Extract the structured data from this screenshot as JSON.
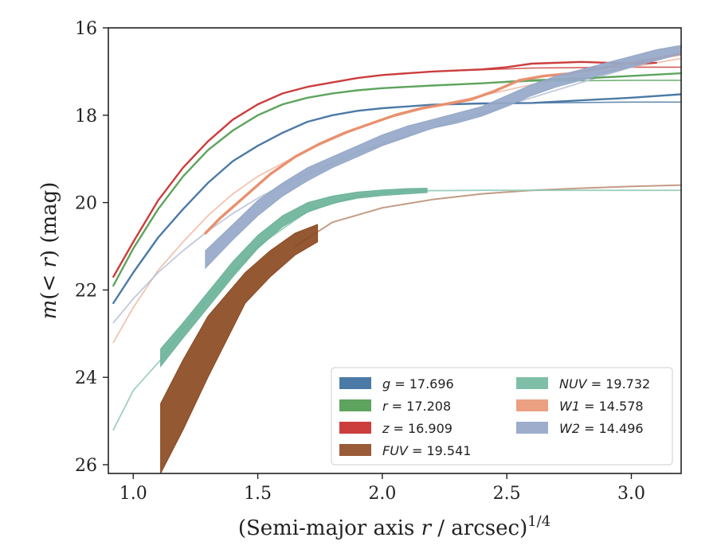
{
  "chart_data": {
    "type": "line",
    "xlabel": "(Semi-major axis r / arcsec)^1/4",
    "ylabel": "m(< r) (mag)",
    "xlim": [
      0.9,
      3.2
    ],
    "ylim": [
      26.2,
      16.0
    ],
    "y_inverted": true,
    "xticks": [
      "1.0",
      "1.5",
      "2.0",
      "2.5",
      "3.0"
    ],
    "yticks": [
      "16",
      "18",
      "20",
      "22",
      "24",
      "26"
    ],
    "grid": false,
    "legend_position": "lower-right",
    "legend_columns": 2,
    "series": [
      {
        "name": "g",
        "legend": "g = 17.696",
        "color": "#4c7aa6",
        "kind": "line",
        "width": 2.4,
        "x": [
          0.92,
          1.0,
          1.1,
          1.2,
          1.3,
          1.4,
          1.5,
          1.6,
          1.7,
          1.8,
          1.9,
          2.0,
          2.2,
          2.4,
          2.6,
          2.8,
          3.0,
          3.2
        ],
        "y": [
          22.3,
          21.6,
          20.8,
          20.15,
          19.55,
          19.05,
          18.7,
          18.4,
          18.15,
          18.0,
          17.9,
          17.84,
          17.76,
          17.73,
          17.72,
          17.66,
          17.6,
          17.52
        ]
      },
      {
        "name": "g model",
        "legend": "",
        "color": "#4c7aa6",
        "kind": "model",
        "width": 1.6,
        "x": [
          2.2,
          2.6,
          3.0,
          3.2
        ],
        "y": [
          17.76,
          17.72,
          17.7,
          17.7
        ]
      },
      {
        "name": "r",
        "legend": "r = 17.208",
        "color": "#5ea45e",
        "kind": "line",
        "width": 2.4,
        "x": [
          0.92,
          1.0,
          1.1,
          1.2,
          1.3,
          1.4,
          1.5,
          1.6,
          1.7,
          1.8,
          1.9,
          2.0,
          2.2,
          2.4,
          2.6,
          2.8,
          3.0,
          3.2
        ],
        "y": [
          21.9,
          21.05,
          20.15,
          19.4,
          18.8,
          18.35,
          18.0,
          17.75,
          17.6,
          17.5,
          17.43,
          17.38,
          17.32,
          17.27,
          17.2,
          17.16,
          17.1,
          17.04
        ]
      },
      {
        "name": "r model",
        "legend": "",
        "color": "#5ea45e",
        "kind": "model",
        "width": 1.6,
        "x": [
          2.2,
          2.6,
          3.0,
          3.2
        ],
        "y": [
          17.32,
          17.22,
          17.2,
          17.2
        ]
      },
      {
        "name": "z",
        "legend": "z = 16.909",
        "color": "#cc3d3d",
        "kind": "line",
        "width": 2.4,
        "x": [
          0.92,
          1.0,
          1.1,
          1.2,
          1.3,
          1.4,
          1.5,
          1.6,
          1.7,
          1.8,
          1.9,
          2.0,
          2.2,
          2.4,
          2.5,
          2.6,
          2.8,
          3.0,
          3.1
        ],
        "y": [
          21.7,
          20.9,
          19.95,
          19.2,
          18.6,
          18.1,
          17.75,
          17.5,
          17.35,
          17.25,
          17.15,
          17.08,
          17.0,
          16.95,
          16.9,
          16.82,
          16.78,
          16.82,
          16.8
        ]
      },
      {
        "name": "z model",
        "legend": "",
        "color": "#cc3d3d",
        "kind": "model",
        "width": 1.6,
        "x": [
          2.2,
          2.6,
          3.0,
          3.2
        ],
        "y": [
          17.0,
          16.92,
          16.9,
          16.9
        ]
      },
      {
        "name": "FUV",
        "legend": "FUV = 19.541",
        "color": "#8b4a22",
        "kind": "band",
        "x": [
          1.11,
          1.2,
          1.3,
          1.45,
          1.55,
          1.65,
          1.74
        ],
        "top": [
          24.6,
          23.6,
          22.6,
          21.6,
          21.1,
          20.7,
          20.5
        ],
        "bot": [
          26.2,
          25.2,
          24.0,
          22.3,
          21.7,
          21.2,
          20.9
        ]
      },
      {
        "name": "FUV model",
        "legend": "",
        "color": "#b98a70",
        "kind": "model",
        "width": 2.0,
        "x": [
          1.65,
          1.8,
          2.0,
          2.2,
          2.4,
          2.6,
          2.8,
          3.0,
          3.2
        ],
        "y": [
          21.0,
          20.45,
          20.12,
          19.93,
          19.8,
          19.72,
          19.67,
          19.63,
          19.6
        ]
      },
      {
        "name": "NUV",
        "legend": "NUV = 19.732",
        "color": "#6cb39a",
        "kind": "band",
        "x": [
          1.11,
          1.2,
          1.3,
          1.4,
          1.5,
          1.6,
          1.7,
          1.8,
          1.9,
          2.0,
          2.1,
          2.18
        ],
        "top": [
          23.35,
          22.75,
          22.05,
          21.35,
          20.75,
          20.3,
          20.0,
          19.85,
          19.76,
          19.71,
          19.68,
          19.67
        ],
        "bot": [
          23.75,
          23.1,
          22.4,
          21.7,
          21.05,
          20.55,
          20.22,
          20.02,
          19.9,
          19.84,
          19.8,
          19.77
        ]
      },
      {
        "name": "NUV model",
        "legend": "",
        "color": "#8cc8b2",
        "kind": "model",
        "width": 1.8,
        "x": [
          0.92,
          1.0,
          1.11,
          1.2,
          1.3,
          1.5,
          1.7,
          1.9,
          2.1,
          2.4,
          2.8,
          3.2
        ],
        "y": [
          25.2,
          24.3,
          23.6,
          22.9,
          22.2,
          21.0,
          20.2,
          19.85,
          19.73,
          19.72,
          19.72,
          19.72
        ]
      },
      {
        "name": "W1",
        "legend": "W1 = 14.578",
        "color": "#e8906e",
        "kind": "line",
        "width": 3.4,
        "x": [
          1.29,
          1.35,
          1.45,
          1.55,
          1.65,
          1.75,
          1.85,
          1.95,
          2.05,
          2.15,
          2.25,
          2.35,
          2.45,
          2.55,
          2.65,
          2.75,
          2.85,
          2.95,
          3.05,
          3.15,
          3.2
        ],
        "y": [
          20.7,
          20.35,
          19.85,
          19.35,
          18.95,
          18.65,
          18.4,
          18.2,
          18.0,
          17.85,
          17.75,
          17.65,
          17.45,
          17.2,
          17.1,
          17.05,
          16.95,
          16.85,
          16.75,
          16.65,
          16.6
        ]
      },
      {
        "name": "W1 model",
        "legend": "",
        "color": "#eeb8a2",
        "kind": "model",
        "width": 1.8,
        "x": [
          0.92,
          1.0,
          1.1,
          1.2,
          1.3,
          1.4,
          1.5,
          1.6,
          1.7,
          1.8,
          1.9,
          2.0,
          2.2,
          2.4,
          2.6,
          2.8,
          3.0,
          3.2
        ],
        "y": [
          23.2,
          22.4,
          21.55,
          20.9,
          20.3,
          19.8,
          19.4,
          19.1,
          18.8,
          18.55,
          18.3,
          18.1,
          17.8,
          17.55,
          17.3,
          17.1,
          16.9,
          16.7
        ]
      },
      {
        "name": "W2",
        "legend": "W2 = 14.496",
        "color": "#95a8c8",
        "kind": "band",
        "x": [
          1.29,
          1.4,
          1.5,
          1.6,
          1.7,
          1.8,
          1.9,
          2.0,
          2.1,
          2.2,
          2.3,
          2.4,
          2.5,
          2.6,
          2.7,
          2.8,
          2.9,
          3.0,
          3.1,
          3.2
        ],
        "top": [
          21.1,
          20.5,
          19.95,
          19.55,
          19.2,
          18.95,
          18.7,
          18.45,
          18.25,
          18.1,
          17.95,
          17.8,
          17.55,
          17.3,
          17.1,
          16.95,
          16.8,
          16.65,
          16.5,
          16.4
        ],
        "bot": [
          21.5,
          20.85,
          20.3,
          19.85,
          19.5,
          19.2,
          18.95,
          18.7,
          18.5,
          18.3,
          18.18,
          18.02,
          17.8,
          17.55,
          17.35,
          17.2,
          17.05,
          16.9,
          16.75,
          16.6
        ]
      },
      {
        "name": "W2 model",
        "legend": "",
        "color": "#b4c0d8",
        "kind": "model",
        "width": 1.8,
        "x": [
          0.92,
          1.0,
          1.1,
          1.2,
          1.3,
          1.4,
          1.5,
          1.6,
          1.7,
          1.8,
          1.9,
          2.0,
          2.2,
          2.4,
          2.6,
          2.8,
          3.0,
          3.2
        ],
        "y": [
          22.75,
          22.2,
          21.6,
          21.1,
          20.65,
          20.25,
          19.9,
          19.6,
          19.35,
          19.1,
          18.85,
          18.65,
          18.3,
          17.95,
          17.6,
          17.25,
          16.9,
          16.55
        ]
      }
    ],
    "legend_items": [
      {
        "label": "g = 17.696",
        "var": "g",
        "val": "= 17.696",
        "color": "#4c7aa6",
        "col": 0,
        "row": 0
      },
      {
        "label": "r = 17.208",
        "var": "r",
        "val": "= 17.208",
        "color": "#5ea45e",
        "col": 0,
        "row": 1
      },
      {
        "label": "z = 16.909",
        "var": "z",
        "val": "= 16.909",
        "color": "#cc3d3d",
        "col": 0,
        "row": 2
      },
      {
        "label": "FUV = 19.541",
        "var": "FUV",
        "val": "= 19.541",
        "color": "#9a5b38",
        "col": 0,
        "row": 3
      },
      {
        "label": "NUV = 19.732",
        "var": "NUV",
        "val": "= 19.732",
        "color": "#7fbfa8",
        "col": 1,
        "row": 0
      },
      {
        "label": "W1 = 14.578",
        "var": "W1",
        "val": "= 14.578",
        "color": "#eba081",
        "col": 1,
        "row": 1
      },
      {
        "label": "W2 = 14.496",
        "var": "W2",
        "val": "= 14.496",
        "color": "#9dadcb",
        "col": 1,
        "row": 2
      }
    ]
  }
}
